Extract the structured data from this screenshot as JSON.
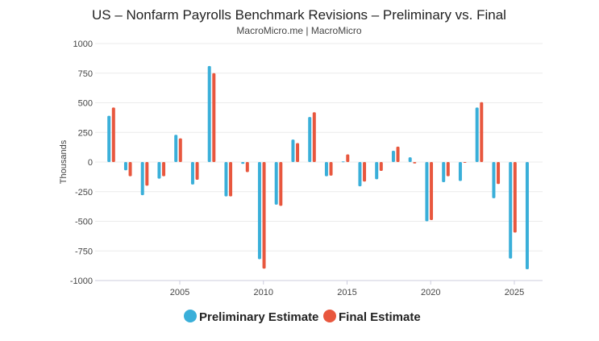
{
  "chart_data": {
    "type": "bar",
    "title": "US – Nonfarm Payrolls Benchmark Revisions – Preliminary vs. Final",
    "subtitle": "MacroMicro.me | MacroMicro",
    "xlabel": "",
    "ylabel": "Thousands",
    "ylim": [
      -1000,
      1000
    ],
    "yticks": [
      "1000",
      "750",
      "500",
      "250",
      "0",
      "-250",
      "-500",
      "-750",
      "-1000"
    ],
    "xticks": [
      "2005",
      "2010",
      "2015",
      "2020",
      "2025"
    ],
    "grid": true,
    "legend_position": "bottom",
    "x": [
      2001,
      2002,
      2003,
      2004,
      2005,
      2006,
      2007,
      2008,
      2009,
      2010,
      2011,
      2012,
      2013,
      2014,
      2015,
      2016,
      2017,
      2018,
      2019,
      2020,
      2021,
      2022,
      2023,
      2024,
      2025,
      2026
    ],
    "series": [
      {
        "name": "Preliminary Estimate",
        "color": "#3aafd9",
        "values": [
          390,
          -70,
          -280,
          -140,
          230,
          -190,
          810,
          -290,
          -15,
          -820,
          -360,
          190,
          380,
          -120,
          5,
          -205,
          -145,
          95,
          40,
          -500,
          -170,
          -160,
          460,
          -305,
          -815,
          -905
        ]
      },
      {
        "name": "Final Estimate",
        "color": "#e8573e",
        "values": [
          460,
          -120,
          -200,
          -120,
          200,
          -150,
          750,
          -290,
          -85,
          -900,
          -370,
          160,
          420,
          -115,
          65,
          -165,
          -75,
          130,
          -12,
          -490,
          -120,
          -5,
          505,
          -185,
          -595,
          null
        ]
      }
    ]
  }
}
